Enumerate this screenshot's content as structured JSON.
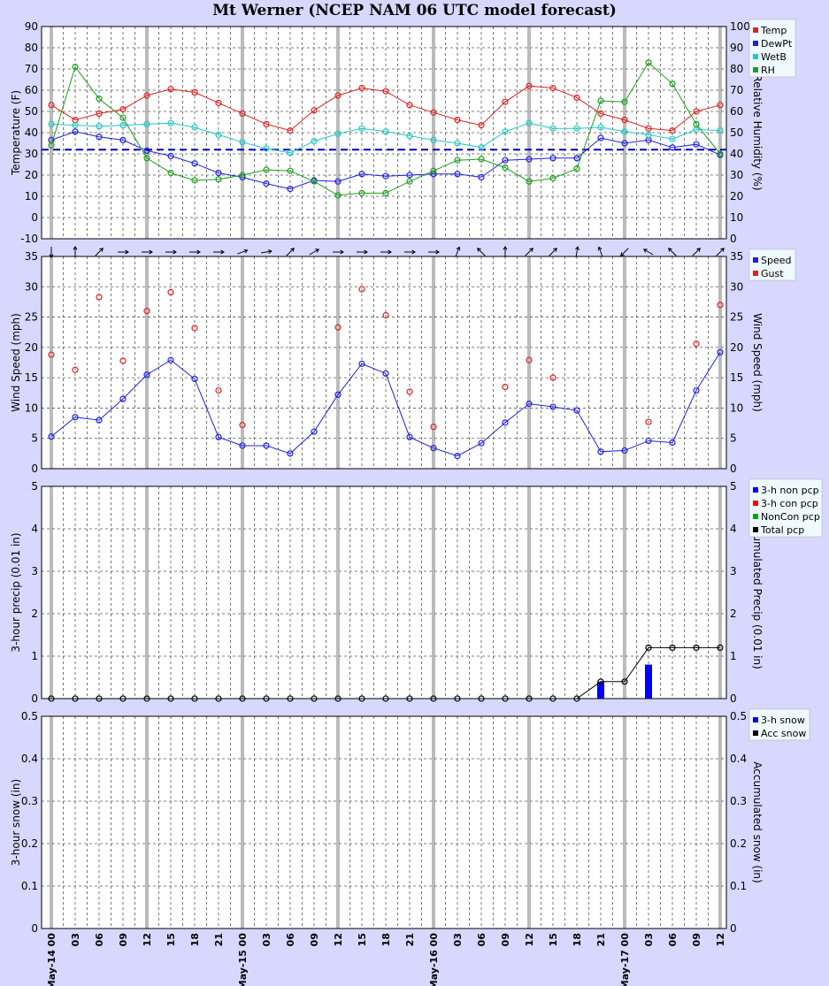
{
  "title": "Mt Werner (NCEP NAM 06 UTC model forecast)",
  "colors": {
    "background": "#d8d8ff",
    "plot": "#ffffff",
    "legend": "#eefaff",
    "temp": "#e02020",
    "dewpt": "#2020e0",
    "wetb": "#20c8c8",
    "rh": "#18a018",
    "speed": "#2020e0",
    "gust": "#e02020",
    "nonpcp": "#0000ff",
    "conpcp": "#ff0000",
    "noncon": "#00aa00",
    "total": "#000000",
    "refline": "#0000cc"
  },
  "x_labels": [
    "May-14 00",
    "03",
    "06",
    "09",
    "12",
    "15",
    "18",
    "21",
    "May-15 00",
    "03",
    "06",
    "09",
    "12",
    "15",
    "18",
    "21",
    "May-16 00",
    "03",
    "06",
    "09",
    "12",
    "15",
    "18",
    "21",
    "May-17 00",
    "03",
    "06",
    "09",
    "12"
  ],
  "chart_data": [
    {
      "type": "line",
      "name": "temperature",
      "ylabel": "Temperature (F)",
      "ylabel_right": "Relative Humidity (%)",
      "ylim": [
        -10,
        90
      ],
      "ylim_right": [
        0,
        100
      ],
      "yticks": [
        "-10",
        "0",
        "10",
        "20",
        "30",
        "40",
        "50",
        "60",
        "70",
        "80",
        "90"
      ],
      "yticks_right": [
        "0",
        "10",
        "20",
        "30",
        "40",
        "50",
        "60",
        "70",
        "80",
        "90",
        "100"
      ],
      "ref_line": 32,
      "legend": [
        "Temp",
        "DewPt",
        "WetB",
        "RH"
      ],
      "series": [
        {
          "name": "Temp",
          "color": "temp",
          "axis": "left",
          "values": [
            53,
            46,
            49,
            51,
            57.5,
            60.5,
            59,
            54,
            49,
            44,
            41,
            50.5,
            57.5,
            61,
            59.5,
            53,
            49.5,
            46,
            43.5,
            54.5,
            62,
            61,
            56.5,
            49,
            46,
            42,
            41,
            50,
            53
          ]
        },
        {
          "name": "DewPt",
          "color": "dewpt",
          "axis": "left",
          "values": [
            36.5,
            40.5,
            38,
            36.5,
            31.5,
            29,
            25.5,
            21,
            19,
            16,
            13.5,
            17.5,
            17,
            20.5,
            19.5,
            20,
            20.5,
            20.5,
            19,
            27,
            27.5,
            28,
            28,
            37.5,
            35,
            36.5,
            33,
            34.5,
            29.5
          ]
        },
        {
          "name": "WetB",
          "color": "wetb",
          "axis": "left",
          "values": [
            44,
            43.5,
            43,
            43.5,
            44,
            44.5,
            42.5,
            39,
            35.5,
            32.5,
            30.5,
            36,
            39.5,
            42,
            40.5,
            38.5,
            36.5,
            35,
            33,
            40.5,
            44.5,
            42,
            42,
            42.5,
            40.5,
            39,
            37,
            41.5,
            41
          ]
        },
        {
          "name": "RH",
          "color": "rh",
          "axis": "right",
          "values": [
            44,
            81,
            66,
            57,
            38,
            31,
            27.5,
            28,
            30,
            32.5,
            32,
            27,
            20.5,
            21.5,
            21.5,
            27,
            32,
            37,
            37.5,
            33.5,
            27,
            28.5,
            33,
            65,
            64.5,
            83,
            73,
            54,
            40
          ]
        }
      ]
    },
    {
      "type": "scatter",
      "name": "wind",
      "ylabel": "Wind Speed (mph)",
      "ylabel_right": "Wind Speed (mph)",
      "ylim": [
        0,
        35
      ],
      "yticks": [
        "0",
        "5",
        "10",
        "15",
        "20",
        "25",
        "30",
        "35"
      ],
      "legend": [
        "Speed",
        "Gust"
      ],
      "wind_dir_deg": [
        180,
        0,
        45,
        90,
        90,
        90,
        90,
        90,
        70,
        80,
        45,
        60,
        90,
        90,
        90,
        90,
        90,
        20,
        315,
        0,
        45,
        45,
        10,
        340,
        225,
        300,
        315,
        45,
        45
      ],
      "series": [
        {
          "name": "Speed",
          "color": "speed",
          "line": true,
          "values": [
            5.3,
            8.5,
            8,
            11.5,
            15.5,
            17.9,
            14.8,
            5.2,
            3.8,
            3.8,
            2.5,
            6.1,
            12.2,
            17.3,
            15.7,
            5.2,
            3.4,
            2.1,
            4.2,
            7.6,
            10.7,
            10.2,
            9.6,
            2.8,
            3,
            4.6,
            4.3,
            12.9,
            19.2
          ]
        },
        {
          "name": "Gust",
          "color": "gust",
          "line": false,
          "values": [
            18.8,
            16.3,
            28.3,
            17.8,
            26,
            29.1,
            23.2,
            12.9,
            7.2,
            null,
            null,
            null,
            23.3,
            29.6,
            25.3,
            12.7,
            6.9,
            null,
            null,
            13.5,
            17.9,
            15,
            null,
            null,
            null,
            7.7,
            null,
            20.6,
            27
          ]
        }
      ]
    },
    {
      "type": "bar",
      "name": "precip",
      "ylabel": "3-hour precip (0.01 in)",
      "ylabel_right": "Accumulated Precip (0.01 in)",
      "ylim": [
        0,
        5
      ],
      "yticks": [
        "0",
        "1",
        "2",
        "3",
        "4",
        "5"
      ],
      "legend": [
        "3-h non pcp",
        "3-h con pcp",
        "NonCon pcp",
        "Total pcp"
      ],
      "series": [
        {
          "name": "3-h non pcp",
          "color": "nonpcp",
          "values": [
            0,
            0,
            0,
            0,
            0,
            0,
            0,
            0,
            0,
            0,
            0,
            0,
            0,
            0,
            0,
            0,
            0,
            0,
            0,
            0,
            0,
            0,
            0,
            0.4,
            0,
            0.8,
            0,
            0,
            0
          ]
        },
        {
          "name": "Total pcp",
          "color": "total",
          "line": true,
          "values": [
            0,
            0,
            0,
            0,
            0,
            0,
            0,
            0,
            0,
            0,
            0,
            0,
            0,
            0,
            0,
            0,
            0,
            0,
            0,
            0,
            0,
            0,
            0,
            0.4,
            0.4,
            1.2,
            1.2,
            1.2,
            1.2
          ]
        }
      ]
    },
    {
      "type": "bar",
      "name": "snow",
      "ylabel": "3-hour snow (in)",
      "ylabel_right": "Accumulated snow (in)",
      "ylim": [
        0,
        0.5
      ],
      "yticks": [
        "0",
        "0.1",
        "0.2",
        "0.3",
        "0.4",
        "0.5"
      ],
      "legend": [
        "3-h snow",
        "Acc snow"
      ],
      "series": []
    }
  ]
}
